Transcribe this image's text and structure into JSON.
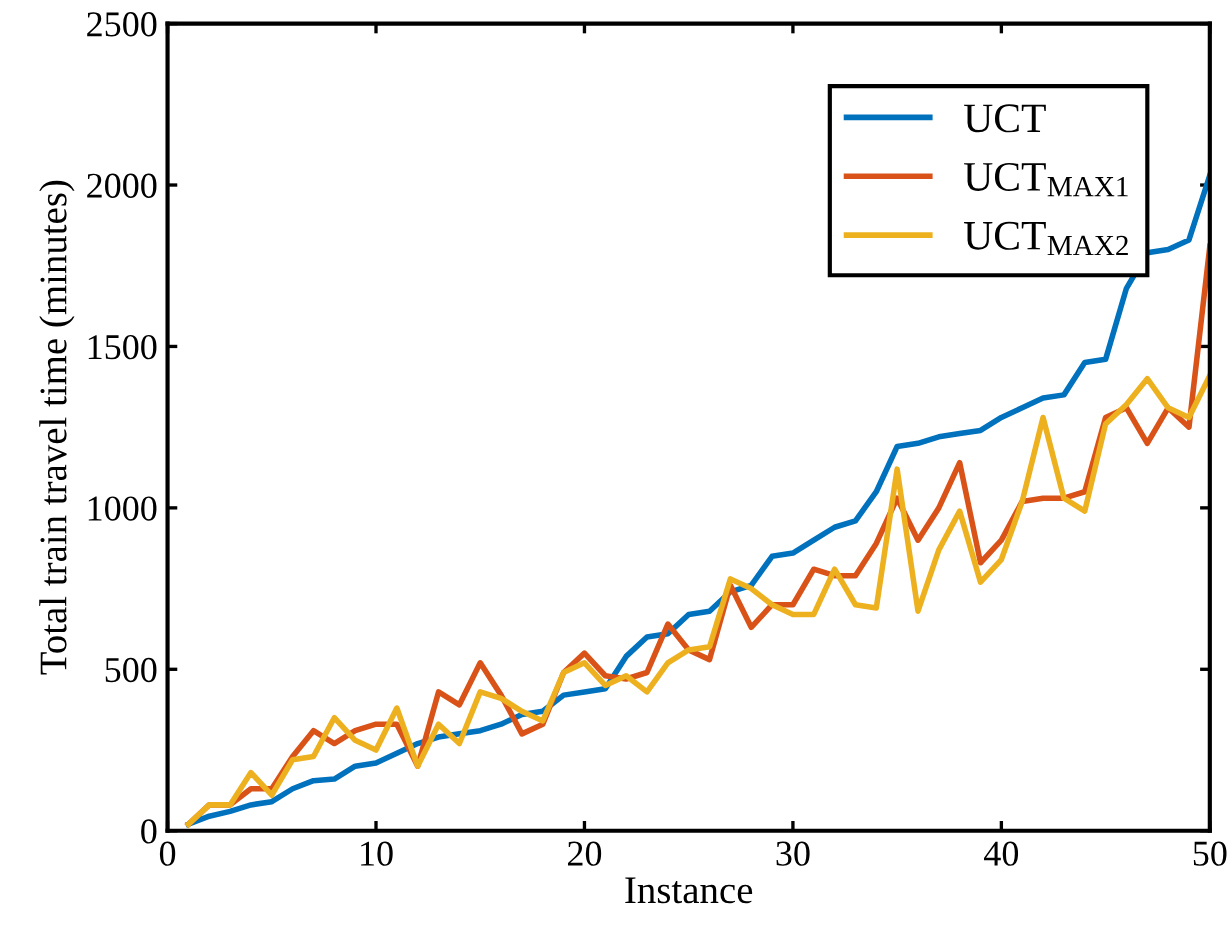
{
  "chart_data": {
    "type": "line",
    "xlabel": "Instance",
    "ylabel": "Total train travel time (minutes)",
    "x": [
      1,
      2,
      3,
      4,
      5,
      6,
      7,
      8,
      9,
      10,
      11,
      12,
      13,
      14,
      15,
      16,
      17,
      18,
      19,
      20,
      21,
      22,
      23,
      24,
      25,
      26,
      27,
      28,
      29,
      30,
      31,
      32,
      33,
      34,
      35,
      36,
      37,
      38,
      39,
      40,
      41,
      42,
      43,
      44,
      45,
      46,
      47,
      48,
      49,
      50
    ],
    "series": [
      {
        "name": "UCT",
        "color": "#0072bd",
        "values": [
          20,
          45,
          60,
          80,
          90,
          130,
          155,
          160,
          200,
          210,
          240,
          270,
          290,
          300,
          310,
          330,
          360,
          370,
          420,
          430,
          440,
          540,
          600,
          610,
          670,
          680,
          740,
          760,
          850,
          860,
          900,
          940,
          960,
          1050,
          1190,
          1200,
          1220,
          1230,
          1240,
          1280,
          1310,
          1340,
          1350,
          1450,
          1460,
          1680,
          1790,
          1800,
          1830,
          2030
        ]
      },
      {
        "name": "UCT$_{MAX1}$",
        "color": "#d95319",
        "values": [
          20,
          80,
          80,
          130,
          130,
          230,
          310,
          270,
          310,
          330,
          330,
          200,
          430,
          390,
          520,
          420,
          300,
          330,
          490,
          550,
          480,
          470,
          490,
          640,
          560,
          530,
          760,
          630,
          700,
          700,
          810,
          790,
          790,
          890,
          1030,
          900,
          1000,
          1140,
          830,
          900,
          1020,
          1030,
          1030,
          1050,
          1280,
          1310,
          1200,
          1310,
          1250,
          1810
        ]
      },
      {
        "name": "UCT$_{MAX2}$",
        "color": "#edb120",
        "values": [
          20,
          80,
          80,
          180,
          110,
          220,
          230,
          350,
          280,
          250,
          380,
          200,
          330,
          270,
          430,
          410,
          370,
          340,
          490,
          520,
          450,
          480,
          430,
          520,
          560,
          570,
          780,
          750,
          700,
          670,
          670,
          810,
          700,
          690,
          1120,
          680,
          870,
          990,
          770,
          840,
          1020,
          1280,
          1030,
          990,
          1260,
          1320,
          1400,
          1310,
          1280,
          1410
        ]
      }
    ],
    "xlim": [
      0,
      50
    ],
    "xticks": [
      0,
      10,
      20,
      30,
      40,
      50
    ],
    "ylim": [
      0,
      2500
    ],
    "yticks": [
      0,
      500,
      1000,
      1500,
      2000,
      2500
    ],
    "grid": false,
    "legend": "top right",
    "marker": "none",
    "line_style": "solid"
  }
}
